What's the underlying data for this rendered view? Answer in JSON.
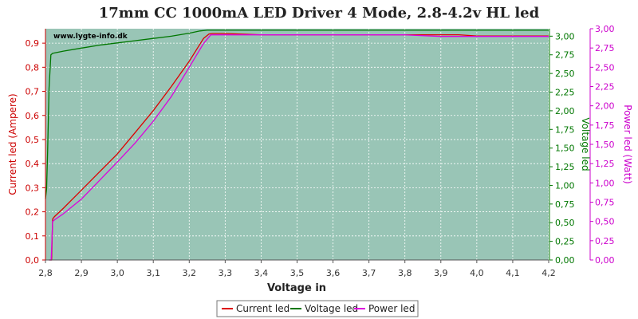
{
  "chart_data": {
    "type": "line",
    "title": "17mm CC 1000mA LED Driver 4 Mode, 2.8-4.2v HL led",
    "watermark": "www.lygte-info.dk",
    "xlabel": "Voltage in",
    "xlim": [
      2.8,
      4.2
    ],
    "x_ticks": [
      "2,8",
      "2,9",
      "3,0",
      "3,1",
      "3,2",
      "3,3",
      "3,4",
      "3,5",
      "3,6",
      "3,7",
      "3,8",
      "3,9",
      "4,0",
      "4,1",
      "4,2"
    ],
    "y_left": {
      "label": "Current led (Ampere)",
      "lim": [
        0,
        0.96
      ],
      "ticks": [
        {
          "v": 0.0,
          "t": "0,0"
        },
        {
          "v": 0.1,
          "t": "0,1"
        },
        {
          "v": 0.2,
          "t": "0,2"
        },
        {
          "v": 0.3,
          "t": "0,3"
        },
        {
          "v": 0.4,
          "t": "0,4"
        },
        {
          "v": 0.5,
          "t": "0,5"
        },
        {
          "v": 0.6,
          "t": "0,6"
        },
        {
          "v": 0.7,
          "t": "0,7"
        },
        {
          "v": 0.8,
          "t": "0,8"
        },
        {
          "v": 0.9,
          "t": "0,9"
        }
      ],
      "color": "#cc0000"
    },
    "y_right1": {
      "label": "Voltage led",
      "lim": [
        0,
        3.1
      ],
      "ticks": [
        {
          "v": 0,
          "t": "0,00"
        },
        {
          "v": 0.25,
          "t": "0,25"
        },
        {
          "v": 0.5,
          "t": "0,50"
        },
        {
          "v": 0.75,
          "t": "0,75"
        },
        {
          "v": 1.0,
          "t": "1,00"
        },
        {
          "v": 1.25,
          "t": "1,25"
        },
        {
          "v": 1.5,
          "t": "1,50"
        },
        {
          "v": 1.75,
          "t": "1,75"
        },
        {
          "v": 2.0,
          "t": "2,00"
        },
        {
          "v": 2.25,
          "t": "2,25"
        },
        {
          "v": 2.5,
          "t": "2,50"
        },
        {
          "v": 2.75,
          "t": "2,75"
        },
        {
          "v": 3.0,
          "t": "3,00"
        }
      ],
      "color": "#007700"
    },
    "y_right2": {
      "label": "Power led (Watt)",
      "lim": [
        0,
        3.0
      ],
      "ticks": [
        {
          "v": 0,
          "t": "0,00"
        },
        {
          "v": 0.25,
          "t": "0,25"
        },
        {
          "v": 0.5,
          "t": "0,50"
        },
        {
          "v": 0.75,
          "t": "0,75"
        },
        {
          "v": 1.0,
          "t": "1,00"
        },
        {
          "v": 1.25,
          "t": "1,25"
        },
        {
          "v": 1.5,
          "t": "1,50"
        },
        {
          "v": 1.75,
          "t": "1,75"
        },
        {
          "v": 2.0,
          "t": "2,00"
        },
        {
          "v": 2.25,
          "t": "2,25"
        },
        {
          "v": 2.5,
          "t": "2,50"
        },
        {
          "v": 2.75,
          "t": "2,75"
        },
        {
          "v": 3.0,
          "t": "3,00"
        }
      ],
      "color": "#cc00cc"
    },
    "plot_background": "#99c5b6",
    "grid": true,
    "legend_position": "bottom-center",
    "series": [
      {
        "name": "Current led",
        "axis": "left",
        "color": "#dd0000",
        "x": [
          2.81,
          2.814,
          2.817,
          2.82,
          2.825,
          2.85,
          2.9,
          2.95,
          3.0,
          3.05,
          3.1,
          3.15,
          3.2,
          3.24,
          3.255,
          3.265,
          3.3,
          3.4,
          3.5,
          3.6,
          3.7,
          3.8,
          3.9,
          3.95,
          4.0,
          4.1,
          4.2
        ],
        "y": [
          0.0,
          0.0,
          0.0,
          0.17,
          0.18,
          0.215,
          0.29,
          0.365,
          0.44,
          0.53,
          0.62,
          0.72,
          0.825,
          0.92,
          0.938,
          0.94,
          0.94,
          0.935,
          0.935,
          0.935,
          0.935,
          0.935,
          0.935,
          0.935,
          0.93,
          0.93,
          0.93
        ]
      },
      {
        "name": "Voltage led",
        "axis": "right1",
        "color": "#007700",
        "x": [
          2.8,
          2.803,
          2.806,
          2.81,
          2.815,
          2.82,
          2.85,
          2.9,
          2.95,
          3.0,
          3.05,
          3.1,
          3.15,
          3.2,
          3.23,
          3.25,
          3.3,
          3.4,
          3.5,
          3.6,
          3.7,
          3.8,
          3.9,
          4.0,
          4.1,
          4.2
        ],
        "y": [
          0.82,
          0.95,
          1.45,
          2.3,
          2.75,
          2.77,
          2.8,
          2.84,
          2.88,
          2.91,
          2.94,
          2.97,
          3.0,
          3.04,
          3.07,
          3.08,
          3.08,
          3.08,
          3.08,
          3.08,
          3.08,
          3.08,
          3.08,
          3.08,
          3.08,
          3.08
        ]
      },
      {
        "name": "Power led",
        "axis": "right2",
        "color": "#dd00dd",
        "x": [
          2.81,
          2.816,
          2.82,
          2.825,
          2.85,
          2.9,
          2.95,
          3.0,
          3.05,
          3.1,
          3.15,
          3.2,
          3.24,
          3.26,
          3.3,
          3.4,
          3.5,
          3.6,
          3.7,
          3.8,
          3.9,
          3.95,
          4.0,
          4.1,
          4.2
        ],
        "y": [
          0.0,
          0.0,
          0.5,
          0.52,
          0.6,
          0.79,
          1.03,
          1.27,
          1.52,
          1.8,
          2.12,
          2.5,
          2.81,
          2.92,
          2.92,
          2.92,
          2.92,
          2.92,
          2.92,
          2.92,
          2.9,
          2.9,
          2.9,
          2.9,
          2.9
        ]
      }
    ]
  }
}
